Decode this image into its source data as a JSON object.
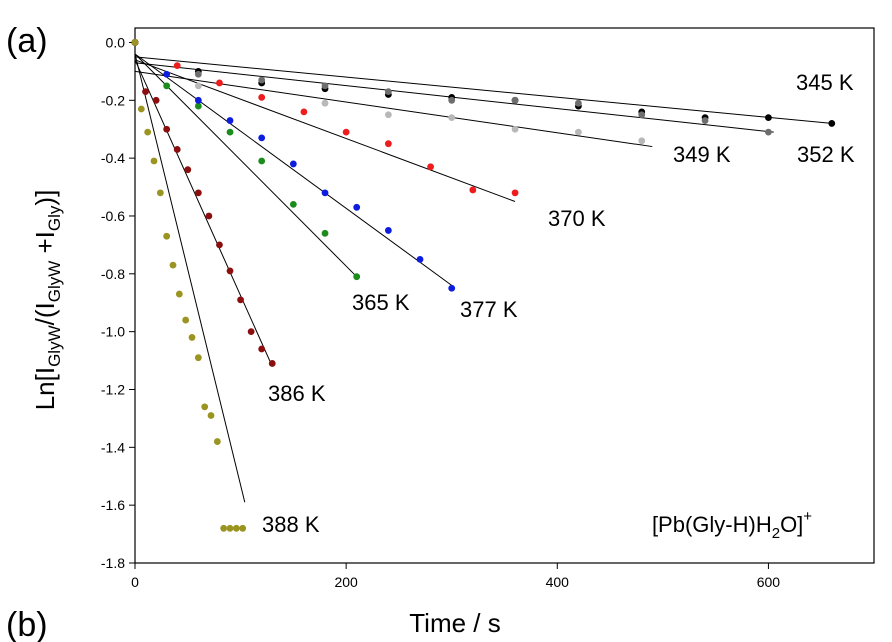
{
  "panel_labels": [
    "(a)",
    "(b)"
  ],
  "chart_data": {
    "type": "scatter",
    "xlabel": "Time / s",
    "ylabel": "Ln[I_GlyW/(I_GlyW + I_Gly)]",
    "ylabel_parts": {
      "pre": "Ln[I",
      "sub1": "GlyW",
      "mid": "/(I",
      "sub2": "GlyW",
      "plus": " +I",
      "sub3": "Gly",
      "post": ")]"
    },
    "annotation": "[Pb(Gly-H)H2O]+",
    "annotation_parts": {
      "pre": "[Pb(Gly-H)H",
      "sub": "2",
      "mid": "O]",
      "sup": "+"
    },
    "xlim": [
      0,
      700
    ],
    "ylim": [
      -1.8,
      0.05
    ],
    "xticks": [
      0,
      200,
      400,
      600
    ],
    "yticks": [
      0.0,
      -0.2,
      -0.4,
      -0.6,
      -0.8,
      -1.0,
      -1.2,
      -1.4,
      -1.6,
      -1.8
    ],
    "xtick_labels": [
      "0",
      "200",
      "400",
      "600"
    ],
    "ytick_labels": [
      "0.0",
      "-0.2",
      "-0.4",
      "-0.6",
      "-0.8",
      "-1.0",
      "-1.2",
      "-1.4",
      "-1.6",
      "-1.8"
    ],
    "series": [
      {
        "name": "345 K",
        "color": "#000000",
        "x": [
          0,
          60,
          120,
          180,
          240,
          300,
          360,
          420,
          480,
          540,
          600,
          660
        ],
        "y": [
          0.0,
          -0.1,
          -0.14,
          -0.16,
          -0.18,
          -0.19,
          -0.2,
          -0.22,
          -0.24,
          -0.26,
          -0.26,
          -0.28
        ],
        "fit": {
          "x": [
            0,
            660
          ],
          "y": [
            -0.05,
            -0.28
          ]
        }
      },
      {
        "name": "349 K",
        "color": "#b8b8b8",
        "x": [
          0,
          60,
          120,
          180,
          240,
          300,
          360,
          420,
          480
        ],
        "y": [
          0.0,
          -0.15,
          -0.19,
          -0.21,
          -0.25,
          -0.26,
          -0.3,
          -0.31,
          -0.34
        ],
        "fit": {
          "x": [
            0,
            490
          ],
          "y": [
            -0.1,
            -0.36
          ]
        }
      },
      {
        "name": "352 K",
        "color": "#6e6e6e",
        "x": [
          0,
          60,
          120,
          180,
          240,
          300,
          360,
          420,
          480,
          540,
          600
        ],
        "y": [
          0.0,
          -0.11,
          -0.13,
          -0.15,
          -0.17,
          -0.2,
          -0.2,
          -0.21,
          -0.25,
          -0.27,
          -0.31
        ],
        "fit": {
          "x": [
            0,
            605
          ],
          "y": [
            -0.07,
            -0.31
          ]
        }
      },
      {
        "name": "370 K",
        "color": "#ee1c1c",
        "x": [
          0,
          40,
          80,
          120,
          160,
          200,
          240,
          280,
          320,
          360
        ],
        "y": [
          0.0,
          -0.08,
          -0.14,
          -0.19,
          -0.24,
          -0.31,
          -0.35,
          -0.43,
          -0.51,
          -0.52
        ],
        "fit": {
          "x": [
            0,
            360
          ],
          "y": [
            -0.06,
            -0.55
          ]
        }
      },
      {
        "name": "365 K",
        "color": "#1c8c1c",
        "x": [
          0,
          30,
          60,
          90,
          120,
          150,
          180,
          210
        ],
        "y": [
          0.0,
          -0.15,
          -0.22,
          -0.31,
          -0.41,
          -0.56,
          -0.66,
          -0.81
        ],
        "fit": {
          "x": [
            0,
            210
          ],
          "y": [
            -0.04,
            -0.81
          ]
        }
      },
      {
        "name": "377 K",
        "color": "#0d1de0",
        "x": [
          0,
          30,
          60,
          90,
          120,
          150,
          180,
          210,
          240,
          270,
          300
        ],
        "y": [
          0.0,
          -0.11,
          -0.2,
          -0.27,
          -0.33,
          -0.42,
          -0.52,
          -0.57,
          -0.65,
          -0.75,
          -0.85
        ],
        "fit": {
          "x": [
            0,
            300
          ],
          "y": [
            -0.04,
            -0.84
          ]
        }
      },
      {
        "name": "386 K",
        "color": "#8b0f0f",
        "x": [
          0,
          10,
          20,
          30,
          40,
          50,
          60,
          70,
          80,
          90,
          100,
          110,
          120,
          130
        ],
        "y": [
          0.0,
          -0.17,
          -0.2,
          -0.3,
          -0.37,
          -0.44,
          -0.52,
          -0.6,
          -0.7,
          -0.79,
          -0.89,
          -1.0,
          -1.06,
          -1.11
        ],
        "fit": {
          "x": [
            0,
            130
          ],
          "y": [
            -0.06,
            -1.12
          ]
        }
      },
      {
        "name": "388 K",
        "color": "#9a9420",
        "x": [
          0,
          6,
          12,
          18,
          24,
          30,
          36,
          42,
          48,
          54,
          60,
          66,
          72,
          78,
          84,
          90,
          96,
          102
        ],
        "y": [
          0.0,
          -0.23,
          -0.31,
          -0.41,
          -0.52,
          -0.67,
          -0.77,
          -0.87,
          -0.96,
          -1.02,
          -1.09,
          -1.26,
          -1.29,
          -1.38,
          -1.68,
          -1.68,
          -1.68,
          -1.68
        ],
        "fit": {
          "x": [
            0,
            104
          ],
          "y": [
            -0.04,
            -1.59
          ]
        }
      }
    ]
  }
}
